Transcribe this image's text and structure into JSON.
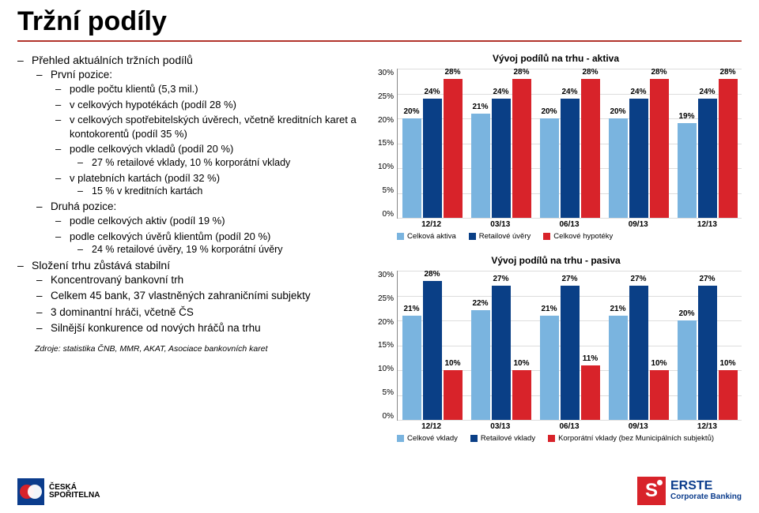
{
  "title": "Tržní podíly",
  "left": {
    "l1a": "Přehled aktuálních tržních podílů",
    "l2a": "První pozice:",
    "l3a": "podle počtu klientů (5,3 mil.)",
    "l3b": "v celkových hypotékách (podíl 28 %)",
    "l3c": "v celkových spotřebitelských úvěrech, včetně kreditních karet a kontokorentů (podíl 35 %)",
    "l3d": "podle celkových vkladů (podíl 20 %)",
    "l4a": "27 % retailové vklady, 10 % korporátní vklady",
    "l3e": "v platebních kartách (podíl 32 %)",
    "l4b": "15 % v kreditních kartách",
    "l2b": "Druhá pozice:",
    "l3f": "podle celkových aktiv (podíl 19 %)",
    "l3g": "podle celkových úvěrů klientům (podíl 20 %)",
    "l4c": "24 % retailové úvěry, 19 % korporátní úvěry",
    "l1b": "Složení trhu zůstává stabilní",
    "l2c": "Koncentrovaný bankovní trh",
    "l2d": "Celkem 45 bank, 37 vlastněných zahraničními subjekty",
    "l2e": "3 dominantní hráči, včetně ČS",
    "l2f": "Silnější konkurence od nových hráčů na trhu"
  },
  "source": "Zdroje: statistika ČNB, MMR, AKAT, Asociace bankovních karet",
  "charts": {
    "ymax": 30,
    "ystep": 5,
    "xlabels": [
      "12/12",
      "03/13",
      "06/13",
      "09/13",
      "12/13"
    ],
    "aktiva": {
      "title": "Vývoj podílů na trhu - aktiva",
      "series": [
        {
          "name": "Celková aktiva",
          "color": "#7ab4df",
          "vals": [
            20,
            21,
            20,
            20,
            19
          ]
        },
        {
          "name": "Retailové úvěry",
          "color": "#0a3f86",
          "vals": [
            24,
            24,
            24,
            24,
            24
          ]
        },
        {
          "name": "Celkové hypotéky",
          "color": "#d8232a",
          "vals": [
            28,
            28,
            28,
            28,
            28
          ]
        }
      ]
    },
    "pasiva": {
      "title": "Vývoj podílů na trhu - pasiva",
      "series": [
        {
          "name": "Celkové vklady",
          "color": "#7ab4df",
          "vals": [
            21,
            22,
            21,
            21,
            20
          ]
        },
        {
          "name": "Retailové vklady",
          "color": "#0a3f86",
          "vals": [
            28,
            27,
            27,
            27,
            27
          ]
        },
        {
          "name": "Korporátní vklady (bez Municipálních subjektů)",
          "color": "#d8232a",
          "vals": [
            10,
            10,
            11,
            10,
            10
          ]
        }
      ]
    }
  },
  "logos": {
    "cs_line1": "ČESKÁ",
    "cs_line2": "SPOŘITELNA",
    "erste_line1": "ERSTE",
    "erste_line2": "Corporate Banking"
  }
}
